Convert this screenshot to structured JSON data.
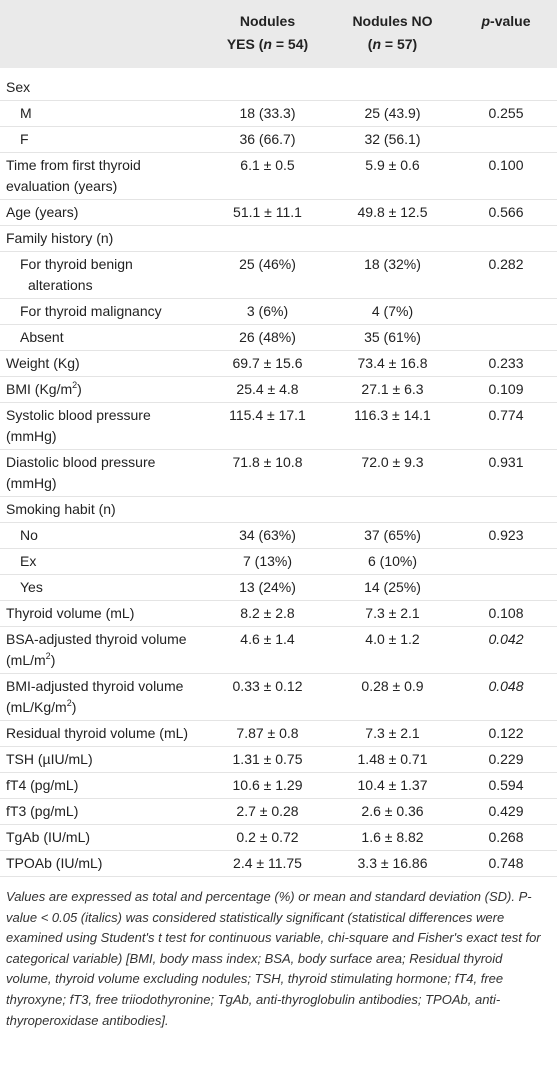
{
  "table": {
    "header": [
      [
        [
          {
            "text": "Nodules"
          }
        ],
        [
          {
            "text": "YES ("
          },
          {
            "text": "n",
            "italic": true
          },
          {
            "text": " = 54)"
          }
        ]
      ],
      [
        [
          {
            "text": "Nodules NO"
          }
        ],
        [
          {
            "text": "("
          },
          {
            "text": "n",
            "italic": true
          },
          {
            "text": " = 57)"
          }
        ]
      ],
      [
        [
          {
            "text": "p",
            "italic": true
          },
          {
            "text": "-value"
          }
        ]
      ]
    ],
    "rows": [
      {
        "label": "Sex",
        "items": [
          {
            "cells": [
              "M",
              "18 (33.3)",
              "25 (43.9)",
              "0.255"
            ]
          },
          {
            "cells": [
              "F",
              "36 (66.7)",
              "32 (56.1)"
            ]
          }
        ]
      },
      {
        "cells": [
          "Time from first thyroid evaluation (years)",
          "6.1 ± 0.5",
          "5.9 ± 0.6",
          "0.100"
        ]
      },
      {
        "cells": [
          "Age (years)",
          "51.1 ± 11.1",
          "49.8 ± 12.5",
          "0.566"
        ]
      },
      {
        "label": "Family history (n)",
        "items": [
          {
            "cells": [
              "For thyroid benign alterations",
              "25 (46%)",
              "18 (32%)",
              "0.282"
            ]
          },
          {
            "cells": [
              "For thyroid malignancy",
              "3 (6%)",
              "4 (7%)"
            ]
          },
          {
            "cells": [
              "Absent",
              "26 (48%)",
              "35 (61%)"
            ]
          }
        ]
      },
      {
        "cells": [
          "Weight (Kg)",
          "69.7 ± 15.6",
          "73.4 ± 16.8",
          "0.233"
        ]
      },
      {
        "cells": [
          [
            {
              "text": "BMI (Kg/m"
            },
            {
              "text": "2",
              "sup": true
            },
            {
              "text": ")"
            }
          ],
          "25.4 ± 4.8",
          "27.1 ± 6.3",
          "0.109"
        ]
      },
      {
        "cells": [
          "Systolic blood pressure (mmHg)",
          "115.4 ± 17.1",
          "116.3 ± 14.1",
          "0.774"
        ]
      },
      {
        "cells": [
          "Diastolic blood pressure (mmHg)",
          "71.8 ± 10.8",
          "72.0 ± 9.3",
          "0.931"
        ]
      },
      {
        "label": "Smoking habit (n)",
        "items": [
          {
            "cells": [
              "No",
              "34 (63%)",
              "37 (65%)",
              "0.923"
            ]
          },
          {
            "cells": [
              "Ex",
              "7 (13%)",
              "6 (10%)"
            ]
          },
          {
            "cells": [
              "Yes",
              "13 (24%)",
              "14 (25%)"
            ]
          }
        ]
      },
      {
        "cells": [
          "Thyroid volume (mL)",
          "8.2 ± 2.8",
          "7.3 ± 2.1",
          "0.108"
        ]
      },
      {
        "cells": [
          [
            {
              "text": "BSA-adjusted thyroid volume (mL/m"
            },
            {
              "text": "2",
              "sup": true
            },
            {
              "text": ")"
            }
          ],
          "4.6 ± 1.4",
          "4.0 ± 1.2",
          "0.042"
        ],
        "italic_p": true
      },
      {
        "cells": [
          [
            {
              "text": "BMI-adjusted thyroid volume (mL/Kg/m"
            },
            {
              "text": "2",
              "sup": true
            },
            {
              "text": ")"
            }
          ],
          "0.33 ± 0.12",
          "0.28 ± 0.9",
          "0.048"
        ],
        "italic_p": true
      },
      {
        "cells": [
          "Residual thyroid volume (mL)",
          "7.87 ± 0.8",
          "7.3 ± 2.1",
          "0.122"
        ]
      },
      {
        "cells": [
          "TSH (µIU/mL)",
          "1.31 ± 0.75",
          "1.48 ± 0.71",
          "0.229"
        ]
      },
      {
        "cells": [
          "fT4 (pg/mL)",
          "10.6 ± 1.29",
          "10.4 ± 1.37",
          "0.594"
        ]
      },
      {
        "cells": [
          "fT3 (pg/mL)",
          "2.7 ± 0.28",
          "2.6 ± 0.36",
          "0.429"
        ]
      },
      {
        "cells": [
          "TgAb (IU/mL)",
          "0.2 ± 0.72",
          "1.6 ± 8.82",
          "0.268"
        ]
      },
      {
        "cells": [
          "TPOAb (IU/mL)",
          "2.4 ± 11.75",
          "3.3 ± 16.86",
          "0.748"
        ]
      }
    ],
    "footnote": "Values are expressed as total and percentage (%) or mean and standard deviation (SD). P-value < 0.05 (italics) was considered statistically significant (statistical differences were examined using Student's t test for continuous variable, chi-square and Fisher's exact test for categorical variable) [BMI, body mass index; BSA, body surface area; Residual thyroid volume, thyroid volume excluding nodules; TSH, thyroid stimulating hormone; fT4, free thyroxyne; fT3, free triiodothyronine; TgAb, anti-thyroglobulin antibodies; TPOAb, anti-thyroperoxidase antibodies]."
  }
}
